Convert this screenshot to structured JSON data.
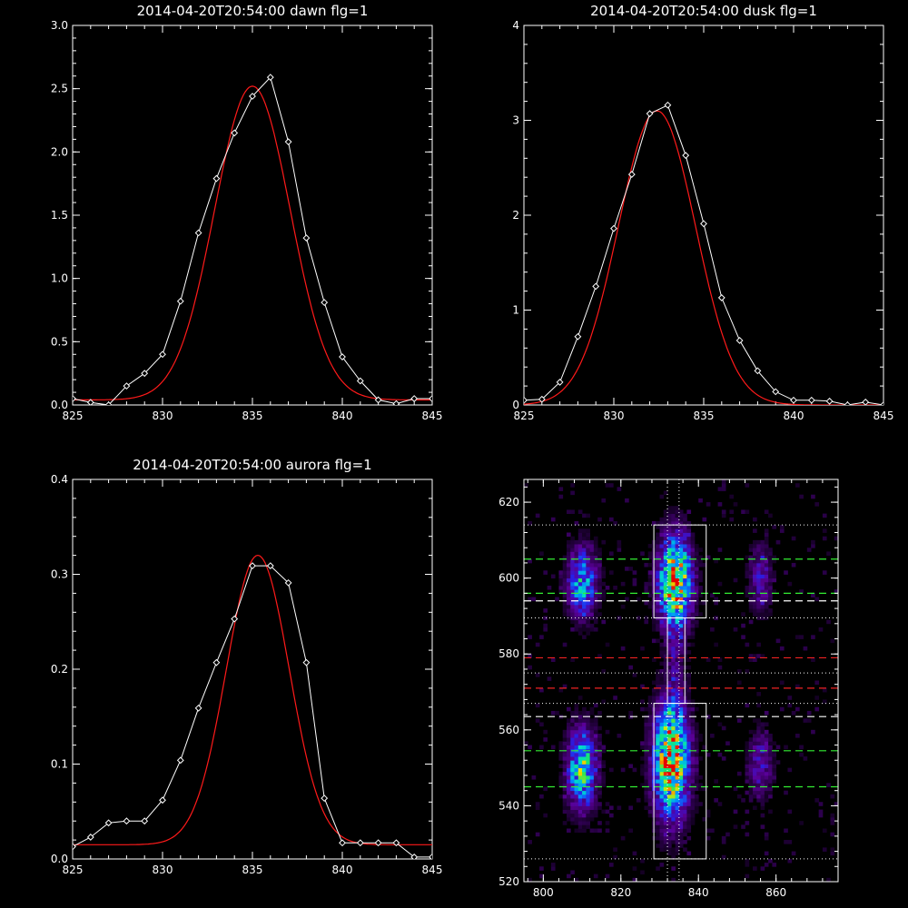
{
  "colors": {
    "background": "#000000",
    "axes": "#ffffff",
    "data_line": "#ffffff",
    "fit_line": "#ff1a1a",
    "dotted_line": "#ffffff",
    "green_dash": "#33ee33",
    "red_dash": "#ee2222",
    "white_dash": "#ffffff",
    "box": "#ffffff"
  },
  "chart_data": [
    {
      "type": "line",
      "title": "2014-04-20T20:54:00 dawn flg=1",
      "xlim": [
        825,
        845
      ],
      "ylim": [
        0,
        3.0
      ],
      "xticks": [
        "825",
        "830",
        "835",
        "840",
        "845"
      ],
      "yticks": [
        "0.0",
        "0.5",
        "1.0",
        "1.5",
        "2.0",
        "2.5",
        "3.0"
      ],
      "series": [
        {
          "role": "data",
          "marker": "diamond",
          "x": [
            825,
            826,
            827,
            828,
            829,
            830,
            831,
            832,
            833,
            834,
            835,
            836,
            837,
            838,
            839,
            840,
            841,
            842,
            843,
            844,
            845
          ],
          "y": [
            0.05,
            0.02,
            0.0,
            0.15,
            0.25,
            0.4,
            0.82,
            1.36,
            1.79,
            2.15,
            2.44,
            2.59,
            2.08,
            1.32,
            0.81,
            0.38,
            0.19,
            0.04,
            0.01,
            0.05,
            0.05
          ]
        },
        {
          "role": "fit",
          "curve": {
            "amplitude": 2.48,
            "center": 835.0,
            "sigma": 2.1,
            "baseline": 0.04
          }
        }
      ]
    },
    {
      "type": "line",
      "title": "2014-04-20T20:54:00 dusk flg=1",
      "xlim": [
        825,
        845
      ],
      "ylim": [
        0,
        4
      ],
      "xticks": [
        "825",
        "830",
        "835",
        "840",
        "845"
      ],
      "yticks": [
        "0",
        "1",
        "2",
        "3",
        "4"
      ],
      "series": [
        {
          "role": "data",
          "marker": "diamond",
          "x": [
            825,
            826,
            827,
            828,
            829,
            830,
            831,
            832,
            833,
            834,
            835,
            836,
            837,
            838,
            839,
            840,
            841,
            842,
            843,
            844,
            845
          ],
          "y": [
            0.05,
            0.06,
            0.24,
            0.72,
            1.25,
            1.86,
            2.43,
            3.07,
            3.16,
            2.63,
            1.91,
            1.13,
            0.68,
            0.36,
            0.14,
            0.05,
            0.05,
            0.04,
            0.0,
            0.03,
            0.0
          ]
        },
        {
          "role": "fit",
          "curve": {
            "amplitude": 3.1,
            "center": 832.4,
            "sigma": 2.15,
            "baseline": 0.0
          }
        }
      ]
    },
    {
      "type": "line",
      "title": "2014-04-20T20:54:00 aurora flg=1",
      "xlim": [
        825,
        845
      ],
      "ylim": [
        0,
        0.4
      ],
      "xticks": [
        "825",
        "830",
        "835",
        "840",
        "845"
      ],
      "yticks": [
        "0.0",
        "0.1",
        "0.2",
        "0.3",
        "0.4"
      ],
      "series": [
        {
          "role": "data",
          "marker": "diamond",
          "x": [
            825,
            826,
            827,
            828,
            829,
            830,
            831,
            832,
            833,
            834,
            835,
            836,
            837,
            838,
            839,
            840,
            841,
            842,
            843,
            844,
            845
          ],
          "y": [
            0.013,
            0.023,
            0.038,
            0.04,
            0.04,
            0.062,
            0.104,
            0.159,
            0.207,
            0.253,
            0.309,
            0.309,
            0.291,
            0.207,
            0.064,
            0.017,
            0.017,
            0.017,
            0.017,
            0.002,
            0.002
          ]
        },
        {
          "role": "fit",
          "curve": {
            "amplitude": 0.305,
            "center": 835.3,
            "sigma": 1.75,
            "baseline": 0.015
          }
        }
      ]
    },
    {
      "type": "heatmap",
      "title": "",
      "xlim": [
        795,
        876
      ],
      "ylim": [
        520,
        626
      ],
      "xticks": [
        "800",
        "820",
        "840",
        "860"
      ],
      "yticks": [
        "520",
        "540",
        "560",
        "580",
        "600",
        "620"
      ],
      "pixel_size": 1.0,
      "blobs": [
        {
          "x": 810,
          "y": 599,
          "sx": 2.5,
          "sy": 6,
          "amp": 0.5
        },
        {
          "x": 810,
          "y": 550,
          "sx": 2.5,
          "sy": 7,
          "amp": 0.62
        },
        {
          "x": 834,
          "y": 599,
          "sx": 2.8,
          "sy": 8,
          "amp": 0.88
        },
        {
          "x": 833,
          "y": 552,
          "sx": 3.0,
          "sy": 10,
          "amp": 0.9
        },
        {
          "x": 856,
          "y": 600,
          "sx": 2.0,
          "sy": 6,
          "amp": 0.25
        },
        {
          "x": 856,
          "y": 551,
          "sx": 2.0,
          "sy": 6,
          "amp": 0.25
        },
        {
          "x": 834,
          "y": 576,
          "sx": 1.5,
          "sy": 10,
          "amp": 0.12
        }
      ],
      "boxes": [
        {
          "x0": 828.5,
          "x1": 842,
          "y0": 589.5,
          "y1": 614
        },
        {
          "x0": 828.5,
          "x1": 842,
          "y0": 526,
          "y1": 567
        },
        {
          "x0": 832,
          "x1": 836.5,
          "y0": 567,
          "y1": 589.5
        }
      ],
      "vertical_dotted": [
        832,
        835
      ],
      "horizontal_lines": [
        {
          "y": 614,
          "style": "dotted",
          "color": "white"
        },
        {
          "y": 605,
          "style": "dashed",
          "color": "green"
        },
        {
          "y": 596,
          "style": "dashed",
          "color": "green"
        },
        {
          "y": 594,
          "style": "dashed",
          "color": "white"
        },
        {
          "y": 589.5,
          "style": "dotted",
          "color": "white"
        },
        {
          "y": 579,
          "style": "dashed",
          "color": "red"
        },
        {
          "y": 575,
          "style": "dotted",
          "color": "white"
        },
        {
          "y": 571,
          "style": "dashed",
          "color": "red"
        },
        {
          "y": 567,
          "style": "dotted",
          "color": "white"
        },
        {
          "y": 563.5,
          "style": "dashed",
          "color": "white"
        },
        {
          "y": 554.5,
          "style": "dashed",
          "color": "green"
        },
        {
          "y": 545,
          "style": "dashed",
          "color": "green"
        },
        {
          "y": 526,
          "style": "dotted",
          "color": "white"
        }
      ]
    }
  ]
}
